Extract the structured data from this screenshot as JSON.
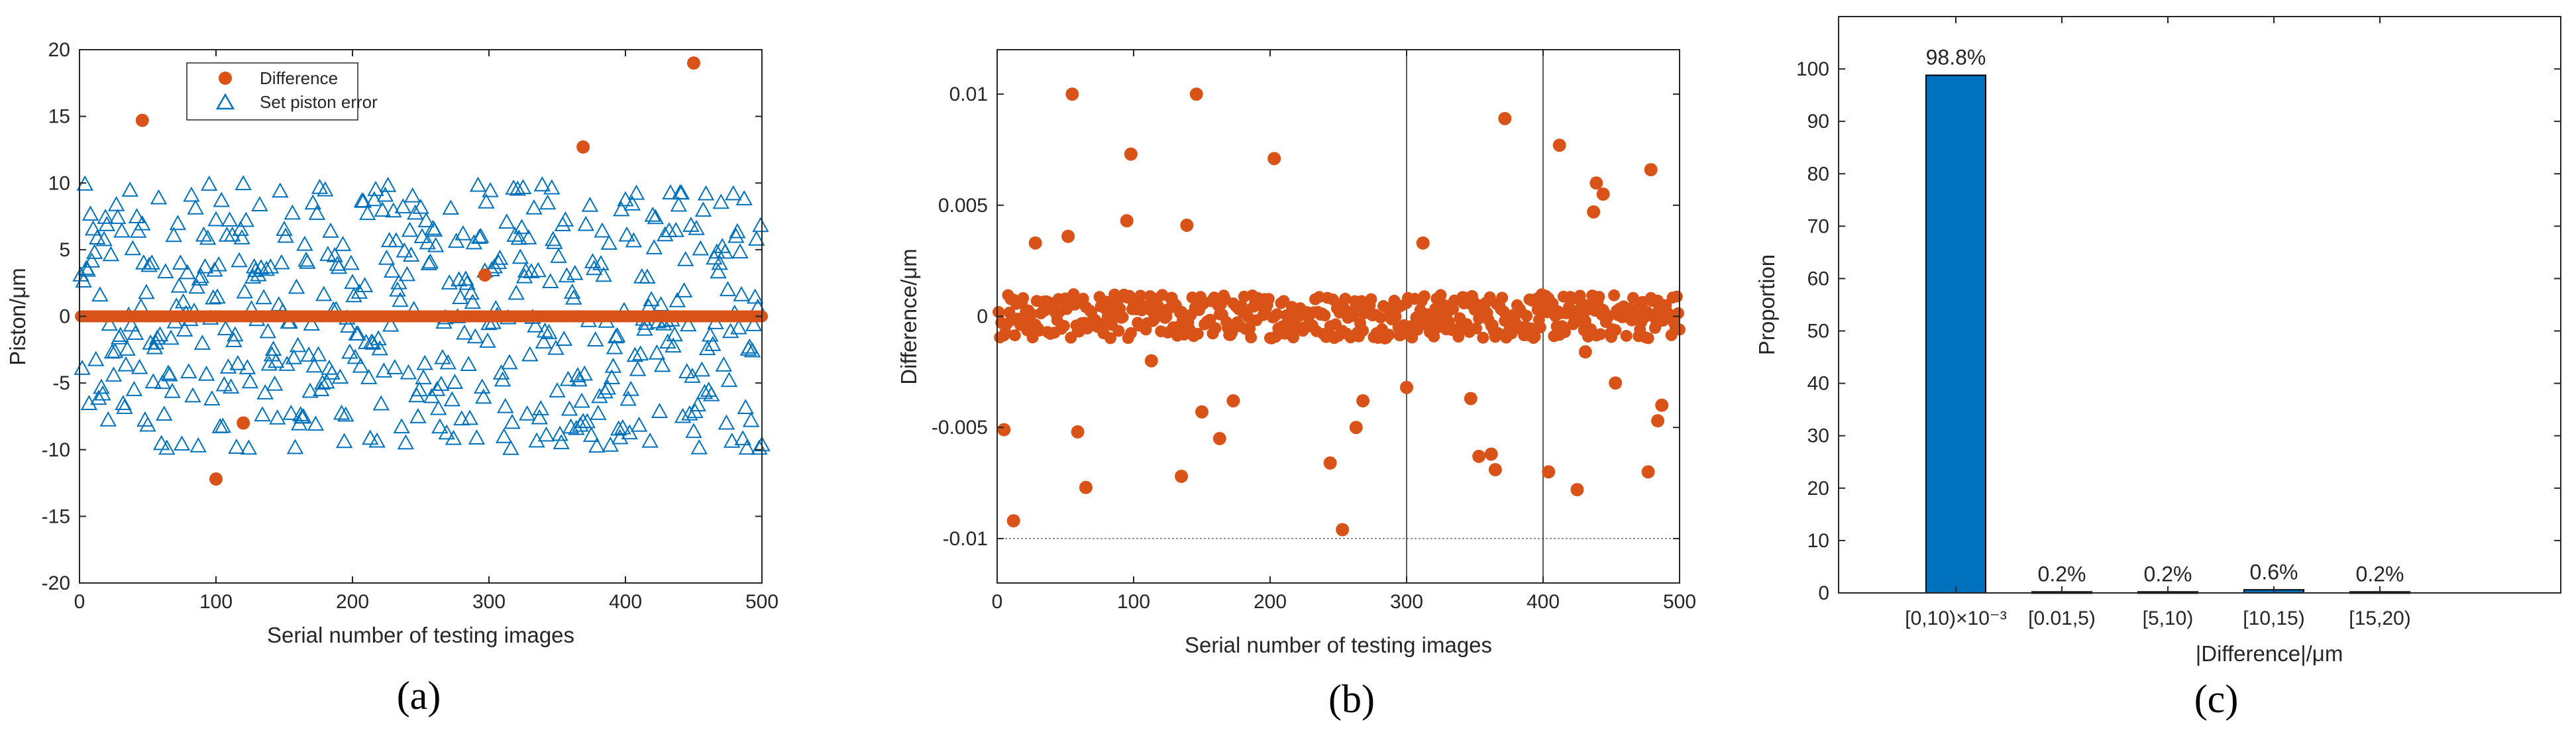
{
  "colors": {
    "difference": "#D95319",
    "set_piston": "#0072BD",
    "bar": "#0072BD",
    "axis": "#262626"
  },
  "panels": {
    "a_label": "(a)",
    "b_label": "(b)",
    "c_label": "(c)"
  },
  "chart_data": [
    {
      "id": "a",
      "type": "scatter",
      "title": "",
      "xlabel": "Serial number of testing images",
      "ylabel": "Piston/μm",
      "xlim": [
        0,
        500
      ],
      "ylim": [
        -20,
        20
      ],
      "xticks": [
        0,
        100,
        200,
        300,
        400,
        500
      ],
      "xtick_labels": [
        "0",
        "100",
        "200",
        "300",
        "400",
        "500"
      ],
      "yticks": [
        -20,
        -15,
        -10,
        -5,
        0,
        5,
        10,
        15,
        20
      ],
      "ytick_labels": [
        "-20",
        "-15",
        "-10",
        "-5",
        "0",
        "5",
        "10",
        "15",
        "20"
      ],
      "legend": [
        "Difference",
        "Set piston error"
      ],
      "legend_location": "top-left",
      "series": [
        {
          "name": "Difference",
          "marker": "filled-circle",
          "n_points": 500,
          "baseline_value": 0,
          "outliers": [
            [
              46,
              14.7
            ],
            [
              100,
              -12.2
            ],
            [
              120,
              -8.0
            ],
            [
              297,
              3.1
            ],
            [
              369,
              12.7
            ],
            [
              450,
              19.0
            ]
          ]
        },
        {
          "name": "Set piston error",
          "marker": "open-triangle",
          "n_points": 500,
          "range": [
            -10,
            10
          ]
        }
      ]
    },
    {
      "id": "b",
      "type": "scatter",
      "title": "",
      "xlabel": "Serial number of testing images",
      "ylabel": "Difference/μm",
      "xlim": [
        0,
        500
      ],
      "ylim": [
        -0.012,
        0.012
      ],
      "xticks": [
        0,
        100,
        200,
        300,
        400,
        500
      ],
      "xtick_labels": [
        "0",
        "100",
        "200",
        "300",
        "400",
        "500"
      ],
      "yticks": [
        -0.01,
        -0.005,
        0,
        0.005,
        0.01
      ],
      "ytick_labels": [
        "-0.01",
        "-0.005",
        "0",
        "0.005",
        "0.01"
      ],
      "reference_lines": {
        "vertical": [
          300,
          400
        ],
        "horizontal": [
          -0.01
        ]
      },
      "series": [
        {
          "name": "Difference",
          "marker": "filled-circle",
          "n_points": 500,
          "band": [
            -0.001,
            0.001
          ],
          "outliers": [
            [
              5,
              -0.0051
            ],
            [
              12,
              -0.0092
            ],
            [
              28,
              0.0033
            ],
            [
              52,
              0.0036
            ],
            [
              55,
              0.01
            ],
            [
              59,
              -0.0052
            ],
            [
              65,
              -0.0077
            ],
            [
              95,
              0.0043
            ],
            [
              98,
              0.0073
            ],
            [
              113,
              -0.002
            ],
            [
              135,
              -0.0072
            ],
            [
              139,
              0.0041
            ],
            [
              146,
              0.01
            ],
            [
              150,
              -0.0043
            ],
            [
              163,
              -0.0055
            ],
            [
              173,
              -0.0038
            ],
            [
              203,
              0.0071
            ],
            [
              244,
              -0.0066
            ],
            [
              253,
              -0.0096
            ],
            [
              263,
              -0.005
            ],
            [
              268,
              -0.0038
            ],
            [
              300,
              -0.0032
            ],
            [
              312,
              0.0033
            ],
            [
              347,
              -0.0037
            ],
            [
              353,
              -0.0063
            ],
            [
              362,
              -0.0062
            ],
            [
              365,
              -0.0069
            ],
            [
              372,
              0.0089
            ],
            [
              404,
              -0.007
            ],
            [
              412,
              0.0077
            ],
            [
              425,
              -0.0078
            ],
            [
              431,
              -0.0016
            ],
            [
              437,
              0.0047
            ],
            [
              439,
              0.006
            ],
            [
              444,
              0.0055
            ],
            [
              453,
              -0.003
            ],
            [
              477,
              -0.007
            ],
            [
              479,
              0.0066
            ],
            [
              484,
              -0.0047
            ],
            [
              487,
              -0.004
            ]
          ]
        }
      ]
    },
    {
      "id": "c",
      "type": "bar",
      "title": "",
      "xlabel": "|Difference|/μm",
      "ylabel": "Proportion",
      "ylim": [
        0,
        110
      ],
      "yticks": [
        0,
        10,
        20,
        30,
        40,
        50,
        60,
        70,
        80,
        90,
        100
      ],
      "ytick_labels": [
        "0",
        "10",
        "20",
        "30",
        "40",
        "50",
        "60",
        "70",
        "80",
        "90",
        "100"
      ],
      "categories": [
        "[0,10)×10⁻³",
        "[0.01,5)",
        "[5,10)",
        "[10,15)",
        "[15,20)"
      ],
      "values": [
        98.8,
        0.2,
        0.2,
        0.6,
        0.2
      ],
      "data_labels": [
        "98.8%",
        "0.2%",
        "0.2%",
        "0.6%",
        "0.2%"
      ]
    }
  ]
}
